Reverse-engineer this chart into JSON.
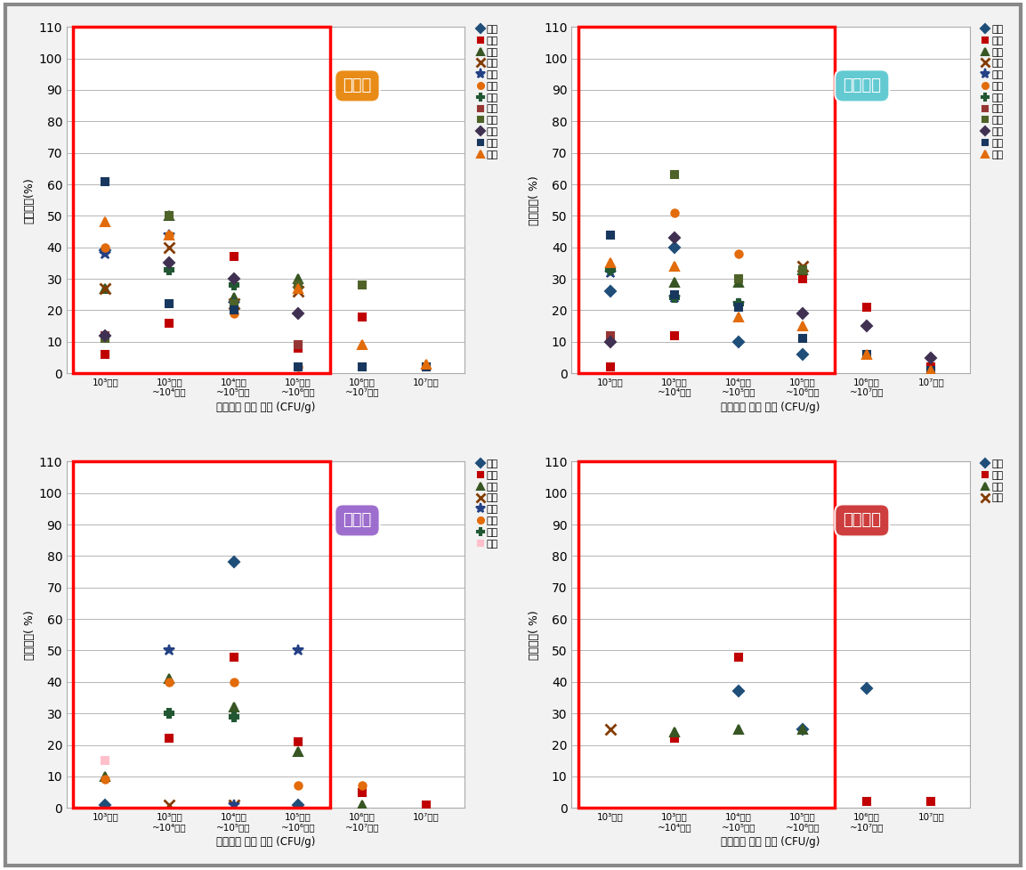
{
  "ylabel_beef": "상대비율(%)",
  "ylabel_others": "상대비율( %)",
  "xlabel": "모니터링 검사 결과 (CFU/g)",
  "ylim": [
    0,
    110
  ],
  "yticks": [
    0,
    10,
    20,
    30,
    40,
    50,
    60,
    70,
    80,
    90,
    100,
    110
  ],
  "subplot_titles": [
    "소고기",
    "돼지고기",
    "닭고기",
    "오리고기"
  ],
  "title_colors": [
    "#E8860A",
    "#5BC8D0",
    "#9966CC",
    "#CC3333"
  ],
  "series_beef": {
    "강원": {
      "marker": "D",
      "color": "#1F4E79",
      "size": 6,
      "values": [
        39,
        null,
        null,
        null,
        null,
        null
      ]
    },
    "경기": {
      "marker": "s",
      "color": "#C00000",
      "size": 6,
      "values": [
        6,
        16,
        37,
        8,
        18,
        2
      ]
    },
    "경남": {
      "marker": "^",
      "color": "#375623",
      "size": 7,
      "values": [
        27,
        50,
        24,
        30,
        null,
        null
      ]
    },
    "광주": {
      "marker": "x",
      "color": "#833C00",
      "size": 8,
      "values": [
        27,
        40,
        22,
        26,
        null,
        null
      ]
    },
    "대구": {
      "marker": "*",
      "color": "#244185",
      "size": 9,
      "values": [
        38,
        44,
        22,
        null,
        null,
        null
      ]
    },
    "부산": {
      "marker": "o",
      "color": "#E26B0A",
      "size": 6,
      "values": [
        40,
        44,
        19,
        2,
        null,
        null
      ]
    },
    "서울": {
      "marker": "P",
      "color": "#215732",
      "size": 7,
      "values": [
        null,
        33,
        28,
        null,
        null,
        null
      ]
    },
    "인체": {
      "marker": "s",
      "color": "#963634",
      "size": 6,
      "values": [
        12,
        null,
        null,
        9,
        null,
        null
      ]
    },
    "전남": {
      "marker": "s",
      "color": "#4F6228",
      "size": 6,
      "values": [
        11,
        50,
        22,
        28,
        28,
        null
      ]
    },
    "전북": {
      "marker": "D",
      "color": "#403152",
      "size": 6,
      "values": [
        12,
        35,
        30,
        19,
        null,
        null
      ]
    },
    "충남": {
      "marker": "s",
      "color": "#17375E",
      "size": 6,
      "values": [
        61,
        22,
        20,
        2,
        2,
        2
      ]
    },
    "충북": {
      "marker": "^",
      "color": "#E26B0A",
      "size": 7,
      "values": [
        48,
        44,
        null,
        27,
        9,
        3
      ]
    }
  },
  "series_pork": {
    "강원": {
      "marker": "D",
      "color": "#1F4E79",
      "size": 6,
      "values": [
        26,
        40,
        10,
        6,
        null,
        null
      ]
    },
    "경기": {
      "marker": "s",
      "color": "#C00000",
      "size": 6,
      "values": [
        2,
        12,
        null,
        30,
        21,
        2
      ]
    },
    "경남": {
      "marker": "^",
      "color": "#375623",
      "size": 7,
      "values": [
        null,
        29,
        29,
        33,
        null,
        null
      ]
    },
    "광주": {
      "marker": "x",
      "color": "#833C00",
      "size": 8,
      "values": [
        null,
        null,
        null,
        34,
        null,
        null
      ]
    },
    "대구": {
      "marker": "*",
      "color": "#244185",
      "size": 9,
      "values": [
        32,
        24,
        22,
        null,
        null,
        null
      ]
    },
    "부산": {
      "marker": "o",
      "color": "#E26B0A",
      "size": 6,
      "values": [
        null,
        51,
        38,
        null,
        null,
        null
      ]
    },
    "서울": {
      "marker": "P",
      "color": "#215732",
      "size": 7,
      "values": [
        33,
        24,
        22,
        null,
        null,
        null
      ]
    },
    "인체": {
      "marker": "s",
      "color": "#963634",
      "size": 6,
      "values": [
        12,
        null,
        null,
        null,
        null,
        null
      ]
    },
    "전남": {
      "marker": "s",
      "color": "#4F6228",
      "size": 6,
      "values": [
        null,
        63,
        30,
        33,
        null,
        null
      ]
    },
    "전북": {
      "marker": "D",
      "color": "#403152",
      "size": 6,
      "values": [
        10,
        43,
        null,
        19,
        15,
        5
      ]
    },
    "충남": {
      "marker": "s",
      "color": "#17375E",
      "size": 6,
      "values": [
        44,
        25,
        21,
        11,
        6,
        1
      ]
    },
    "충북": {
      "marker": "^",
      "color": "#E26B0A",
      "size": 7,
      "values": [
        35,
        34,
        18,
        15,
        6,
        1
      ]
    }
  },
  "series_chicken": {
    "강원": {
      "marker": "D",
      "color": "#1F4E79",
      "size": 6,
      "values": [
        1,
        null,
        78,
        1,
        null,
        null
      ]
    },
    "경기": {
      "marker": "s",
      "color": "#C00000",
      "size": 6,
      "values": [
        null,
        22,
        48,
        21,
        5,
        1
      ]
    },
    "광주": {
      "marker": "^",
      "color": "#375623",
      "size": 7,
      "values": [
        10,
        41,
        32,
        18,
        1,
        null
      ]
    },
    "부산": {
      "marker": "x",
      "color": "#833C00",
      "size": 8,
      "values": [
        null,
        1,
        1,
        null,
        null,
        null
      ]
    },
    "전남": {
      "marker": "*",
      "color": "#244185",
      "size": 9,
      "values": [
        null,
        50,
        1,
        50,
        null,
        null
      ]
    },
    "전북": {
      "marker": "o",
      "color": "#E26B0A",
      "size": 6,
      "values": [
        9,
        40,
        40,
        7,
        7,
        null
      ]
    },
    "충남": {
      "marker": "P",
      "color": "#215732",
      "size": 7,
      "values": [
        null,
        30,
        29,
        null,
        null,
        null
      ]
    },
    "충북": {
      "marker": "s",
      "color": "#FFC0CB",
      "size": 6,
      "values": [
        15,
        null,
        null,
        null,
        null,
        null
      ]
    }
  },
  "series_duck": {
    "경기": {
      "marker": "D",
      "color": "#1F4E79",
      "size": 6,
      "values": [
        null,
        null,
        37,
        25,
        38,
        null
      ]
    },
    "광주": {
      "marker": "s",
      "color": "#C00000",
      "size": 6,
      "values": [
        null,
        22,
        48,
        null,
        2,
        2
      ]
    },
    "전남": {
      "marker": "^",
      "color": "#375623",
      "size": 7,
      "values": [
        null,
        24,
        25,
        25,
        null,
        null
      ]
    },
    "전북": {
      "marker": "x",
      "color": "#833C00",
      "size": 8,
      "values": [
        25,
        null,
        null,
        null,
        null,
        null
      ]
    }
  },
  "bg_color": "#F2F2F2",
  "plot_bg": "#FFFFFF",
  "border_color": "#AAAAAA"
}
